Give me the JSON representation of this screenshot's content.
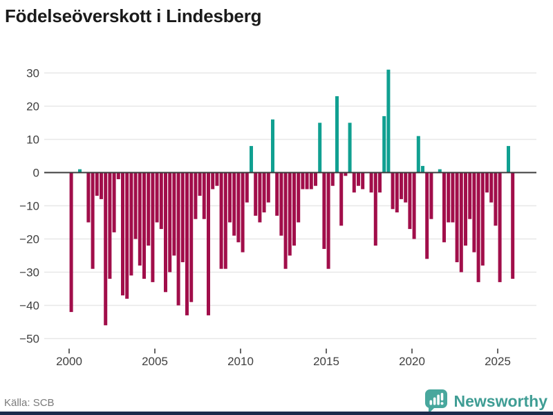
{
  "title": "Födelseöverskott i Lindesberg",
  "footer": {
    "source": "Källa: SCB",
    "brand": "Newsworthy"
  },
  "colors": {
    "positive_bar": "#10a091",
    "negative_bar": "#a10e4a",
    "grid_line": "#e7e7e7",
    "zero_line": "#3b3b3b",
    "axis_text": "#3f3f3f",
    "title_text": "#1a1a1a",
    "source_text": "#7a7a7a",
    "brand_teal": "#3f9d94",
    "logo_bg": "#48a79d",
    "bottom_accent": "#1b2b4b"
  },
  "chart_data": {
    "type": "bar",
    "title": "Födelseöverskott i Lindesberg",
    "grid": true,
    "legend": false,
    "ylim": [
      -50,
      33
    ],
    "y_ticks": [
      30,
      20,
      10,
      0,
      -10,
      -20,
      -30,
      -40,
      -50
    ],
    "y_tick_labels": [
      "30",
      "20",
      "10",
      "0",
      "−10",
      "−20",
      "−30",
      "−40",
      "−50"
    ],
    "x_tick_years": [
      2000,
      2005,
      2010,
      2015,
      2020,
      2025
    ],
    "x_tick_labels": [
      "2000",
      "2005",
      "2010",
      "2015",
      "2020",
      "2025"
    ],
    "categories": [
      "2000Q1",
      "2000Q2",
      "2000Q3",
      "2000Q4",
      "2001Q1",
      "2001Q2",
      "2001Q3",
      "2001Q4",
      "2002Q1",
      "2002Q2",
      "2002Q3",
      "2002Q4",
      "2003Q1",
      "2003Q2",
      "2003Q3",
      "2003Q4",
      "2004Q1",
      "2004Q2",
      "2004Q3",
      "2004Q4",
      "2005Q1",
      "2005Q2",
      "2005Q3",
      "2005Q4",
      "2006Q1",
      "2006Q2",
      "2006Q3",
      "2006Q4",
      "2007Q1",
      "2007Q2",
      "2007Q3",
      "2007Q4",
      "2008Q1",
      "2008Q2",
      "2008Q3",
      "2008Q4",
      "2009Q1",
      "2009Q2",
      "2009Q3",
      "2009Q4",
      "2010Q1",
      "2010Q2",
      "2010Q3",
      "2010Q4",
      "2011Q1",
      "2011Q2",
      "2011Q3",
      "2011Q4",
      "2012Q1",
      "2012Q2",
      "2012Q3",
      "2012Q4",
      "2013Q1",
      "2013Q2",
      "2013Q3",
      "2013Q4",
      "2014Q1",
      "2014Q2",
      "2014Q3",
      "2014Q4",
      "2015Q1",
      "2015Q2",
      "2015Q3",
      "2015Q4",
      "2016Q1",
      "2016Q2",
      "2016Q3",
      "2016Q4",
      "2017Q1",
      "2017Q2",
      "2017Q3",
      "2017Q4",
      "2018Q1",
      "2018Q2",
      "2018Q3",
      "2018Q4",
      "2019Q1",
      "2019Q2",
      "2019Q3",
      "2019Q4",
      "2020Q1",
      "2020Q2",
      "2020Q3",
      "2020Q4",
      "2021Q1",
      "2021Q2",
      "2021Q3",
      "2021Q4",
      "2022Q1",
      "2022Q2",
      "2022Q3",
      "2022Q4",
      "2023Q1",
      "2023Q2",
      "2023Q3",
      "2023Q4",
      "2024Q1",
      "2024Q2",
      "2024Q3",
      "2024Q4",
      "2025Q1",
      "2025Q2",
      "2025Q3",
      "2025Q4"
    ],
    "values": [
      -42,
      0,
      1,
      0,
      -15,
      -29,
      -7,
      -8,
      -46,
      -32,
      -18,
      -2,
      -37,
      -38,
      -31,
      -20,
      -28,
      -32,
      -22,
      -33,
      -15,
      -17,
      -36,
      -30,
      -25,
      -40,
      -27,
      -43,
      -39,
      -14,
      -7,
      -14,
      -43,
      -5,
      -4,
      -29,
      -29,
      -15,
      -19,
      -21,
      -24,
      -9,
      8,
      -13,
      -15,
      -12,
      -9,
      16,
      -13,
      -19,
      -29,
      -25,
      -22,
      -15,
      -5,
      -5,
      -5,
      -4,
      15,
      -23,
      -29,
      -4,
      23,
      -16,
      -1,
      15,
      -6,
      -4,
      -5,
      0,
      -6,
      -22,
      -6,
      17,
      31,
      -11,
      -12,
      -8,
      -9,
      -17,
      -20,
      11,
      2,
      -26,
      -14,
      0,
      1,
      -21,
      -15,
      -15,
      -27,
      -30,
      -22,
      -14,
      -24,
      -33,
      -28,
      -6,
      -9,
      -16,
      -33,
      0,
      8,
      -32
    ]
  }
}
